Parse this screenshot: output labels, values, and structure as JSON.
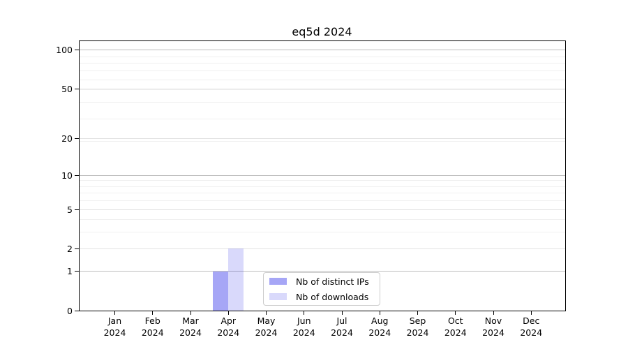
{
  "chart_data": {
    "type": "bar",
    "title": "eq5d 2024",
    "categories": [
      "Jan 2024",
      "Feb 2024",
      "Mar 2024",
      "Apr 2024",
      "May 2024",
      "Jun 2024",
      "Jul 2024",
      "Aug 2024",
      "Sep 2024",
      "Oct 2024",
      "Nov 2024",
      "Dec 2024"
    ],
    "series": [
      {
        "name": "Nb of distinct IPs",
        "color": "rgba(0,0,230,0.35)",
        "values": [
          0,
          0,
          0,
          1,
          0,
          0,
          0,
          0,
          0,
          0,
          0,
          0
        ]
      },
      {
        "name": "Nb of downloads",
        "color": "rgba(0,0,230,0.15)",
        "values": [
          0,
          0,
          0,
          2,
          0,
          0,
          0,
          0,
          0,
          0,
          0,
          0
        ]
      }
    ],
    "xlabel": "",
    "ylabel": "",
    "yscale": "log1p",
    "ylim": [
      0,
      119
    ],
    "y_ticks": [
      0,
      1,
      2,
      5,
      10,
      20,
      50,
      100
    ],
    "y_minor_gridlines": [
      3,
      4,
      6,
      7,
      8,
      9,
      19,
      29,
      39,
      49,
      59,
      69,
      79,
      89
    ],
    "y_emphasized_gridlines": [
      1,
      10,
      100
    ],
    "grid": true,
    "legend_position": "inside-bottom-center",
    "colors": {
      "grid_minor": "#f0f0f0",
      "grid_major": "#e2e2e2",
      "grid_emphasized": "#bdbdbd",
      "spine": "#000000",
      "text": "#000000",
      "legend_border": "#cccccc"
    }
  }
}
